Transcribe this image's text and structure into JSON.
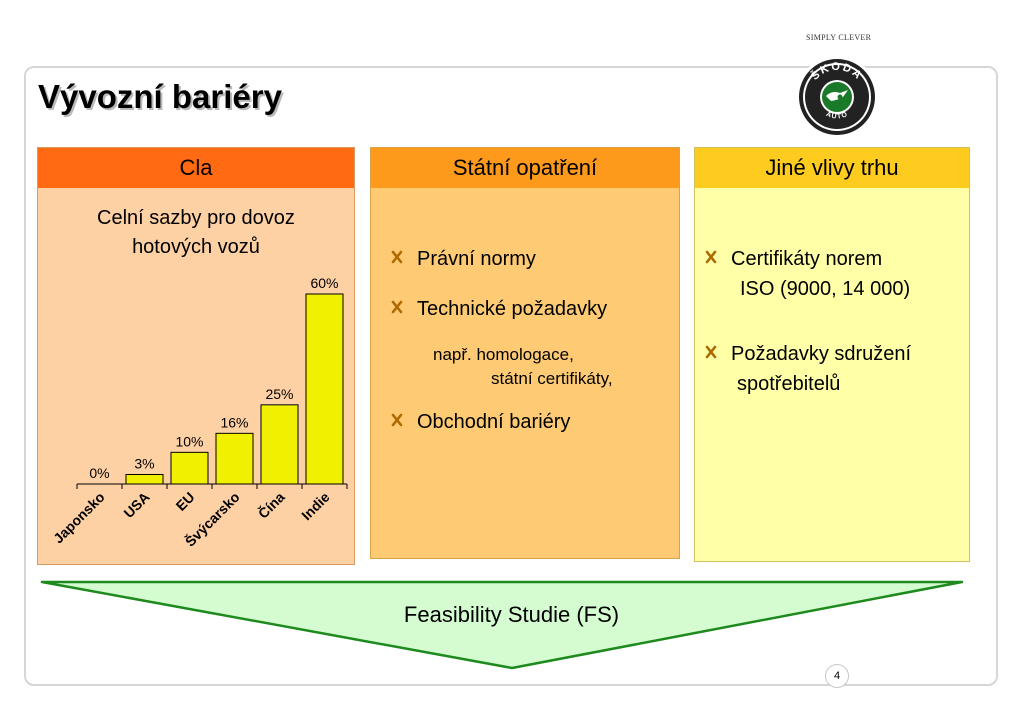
{
  "slogan": "SIMPLY CLEVER",
  "logo": {
    "ring_text": "ŠKODA",
    "bottom_text": "AUTO",
    "colors": {
      "ring": "#111111",
      "accent": "#1a7a2a"
    }
  },
  "title": "Vývozní bariéry",
  "columns": {
    "cla": {
      "header": "Cla",
      "colors": {
        "header": "#ff6a13",
        "body": "#fed1a5"
      }
    },
    "statni": {
      "header": "Státní opatření",
      "colors": {
        "header": "#fe9a1b",
        "body": "#fecb74"
      },
      "bullets": [
        "Právní normy",
        "Technické požadavky",
        "Obchodní bariéry"
      ],
      "note_line1": "např. homologace,",
      "note_line2": "státní certifikáty,"
    },
    "jine": {
      "header": "Jiné vlivy trhu",
      "colors": {
        "header": "#fecc1e",
        "body": "#ffffa7"
      },
      "bullet1_line1": "Certifikáty norem",
      "bullet1_line2": "ISO (9000, 14 000)",
      "bullet2_line1": "Požadavky sdružení",
      "bullet2_line2": "spotřebitelů"
    }
  },
  "bullet_icon": "cross-mark-icon",
  "chart_data": {
    "type": "bar",
    "title_line1": "Celní sazby pro dovoz",
    "title_line2": "hotových vozů",
    "categories": [
      "Japonsko",
      "USA",
      "EU",
      "Švýcarsko",
      "Čína",
      "Indie"
    ],
    "values": [
      0,
      3,
      10,
      16,
      25,
      60
    ],
    "labels": [
      "0%",
      "3%",
      "10%",
      "16%",
      "25%",
      "60%"
    ],
    "ylim": [
      0,
      60
    ],
    "grid": false,
    "bar_color": "#f0f000"
  },
  "banner": {
    "text": "Feasibility Studie (FS)",
    "fill": "#d4fcd0",
    "stroke": "#1e8a1e"
  },
  "page_number": "4"
}
